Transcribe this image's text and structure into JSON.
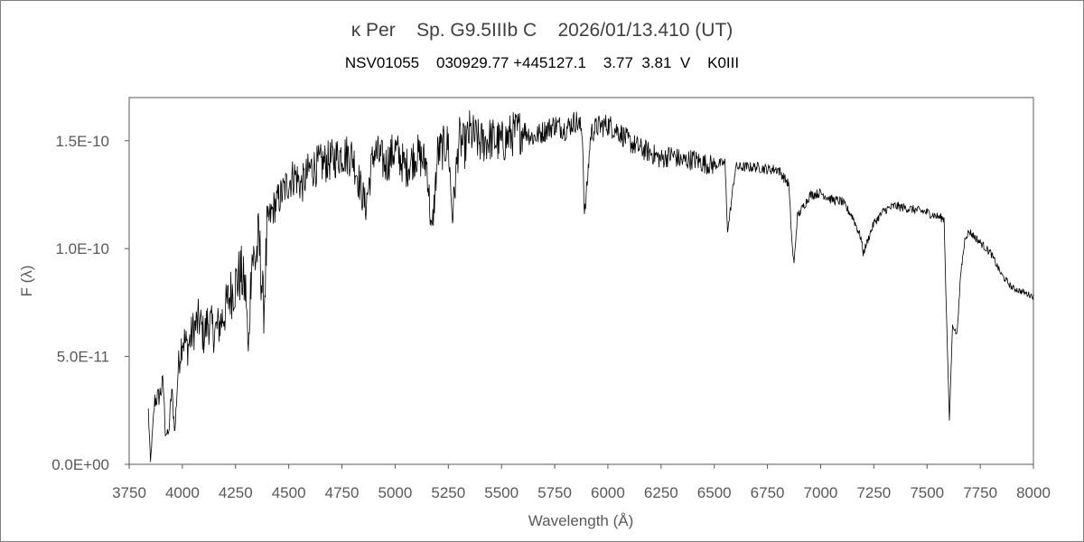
{
  "chart_data": {
    "type": "line",
    "title": "κ Per    Sp. G9.5IIIb C    2026/01/13.410 (UT)",
    "subtitle": "NSV01055    030929.77 +445127.1    3.77  3.81  V    K0III",
    "xlabel": "Wavelength (Å)",
    "ylabel": "F (λ)",
    "xlim": [
      3750,
      8000
    ],
    "ylim": [
      0,
      1.7e-10
    ],
    "xticks": [
      3750,
      4000,
      4250,
      4500,
      4750,
      5000,
      5250,
      5500,
      5750,
      6000,
      6250,
      6500,
      6750,
      7000,
      7250,
      7500,
      7750,
      8000
    ],
    "xtick_labels": [
      "3750",
      "4000",
      "4250",
      "4500",
      "4750",
      "5000",
      "5250",
      "5500",
      "5750",
      "6000",
      "6250",
      "6500",
      "6750",
      "7000",
      "7250",
      "7500",
      "7750",
      "8000"
    ],
    "yticks": [
      0,
      5e-11,
      1e-10,
      1.5e-10
    ],
    "ytick_labels": [
      "0.0E+00",
      "5.0E-11",
      "1.0E-10",
      "1.5E-10"
    ],
    "grid": false,
    "legend": "none",
    "line_color": "#000000",
    "series": [
      {
        "x": [
          3840,
          3850,
          3870,
          3890,
          3910,
          3920,
          3935,
          3950,
          3965,
          3980,
          4000,
          4025,
          4050,
          4080,
          4101,
          4120,
          4150,
          4175,
          4200,
          4225,
          4250,
          4275,
          4300,
          4310,
          4325,
          4340,
          4360,
          4383,
          4400,
          4430,
          4460,
          4500,
          4530,
          4560,
          4600,
          4650,
          4700,
          4750,
          4800,
          4861,
          4900,
          4957,
          5000,
          5050,
          5100,
          5150,
          5172,
          5200,
          5250,
          5269,
          5300,
          5328,
          5350,
          5400,
          5450,
          5500,
          5550,
          5600,
          5650,
          5700,
          5750,
          5800,
          5850,
          5880,
          5890,
          5896,
          5920,
          5950,
          6000,
          6050,
          6100,
          6150,
          6200,
          6250,
          6300,
          6350,
          6400,
          6450,
          6500,
          6550,
          6563,
          6600,
          6650,
          6700,
          6750,
          6800,
          6850,
          6867,
          6875,
          6890,
          6950,
          7000,
          7050,
          7100,
          7150,
          7190,
          7200,
          7250,
          7300,
          7350,
          7400,
          7450,
          7500,
          7550,
          7580,
          7594,
          7605,
          7620,
          7640,
          7660,
          7680,
          7700,
          7750,
          7800,
          7850,
          7900,
          7950,
          8000
        ],
        "y": [
          2.5e-11,
          1e-12,
          3e-11,
          3.2e-11,
          3.8e-11,
          1.5e-11,
          1.4e-11,
          3.5e-11,
          1.5e-11,
          4.5e-11,
          6e-11,
          5.5e-11,
          6.3e-11,
          6.8e-11,
          6e-11,
          6.8e-11,
          6.2e-11,
          6.6e-11,
          7.2e-11,
          8e-11,
          8.5e-11,
          9e-11,
          8e-11,
          5e-11,
          1e-10,
          9.5e-11,
          1.05e-10,
          7.2e-11,
          1.12e-10,
          1.2e-10,
          1.25e-10,
          1.32e-10,
          1.35e-10,
          1.3e-10,
          1.38e-10,
          1.4e-10,
          1.42e-10,
          1.45e-10,
          1.44e-10,
          1.2e-10,
          1.46e-10,
          1.4e-10,
          1.47e-10,
          1.38e-10,
          1.45e-10,
          1.4e-10,
          1.06e-10,
          1.45e-10,
          1.5e-10,
          1.15e-10,
          1.52e-10,
          1.48e-10,
          1.55e-10,
          1.5e-10,
          1.52e-10,
          1.5e-10,
          1.54e-10,
          1.56e-10,
          1.52e-10,
          1.55e-10,
          1.58e-10,
          1.56e-10,
          1.6e-10,
          1.55e-10,
          1.15e-10,
          1.22e-10,
          1.54e-10,
          1.57e-10,
          1.58e-10,
          1.55e-10,
          1.5e-10,
          1.47e-10,
          1.45e-10,
          1.42e-10,
          1.44e-10,
          1.41e-10,
          1.42e-10,
          1.4e-10,
          1.39e-10,
          1.4e-10,
          1.08e-10,
          1.38e-10,
          1.38e-10,
          1.38e-10,
          1.37e-10,
          1.37e-10,
          1.3e-10,
          1e-10,
          9.3e-11,
          1.15e-10,
          1.25e-10,
          1.26e-10,
          1.23e-10,
          1.22e-10,
          1.15e-10,
          1.05e-10,
          9.8e-11,
          1.12e-10,
          1.18e-10,
          1.2e-10,
          1.19e-10,
          1.18e-10,
          1.17e-10,
          1.15e-10,
          1.14e-10,
          6e-11,
          2e-11,
          6.5e-11,
          6e-11,
          9e-11,
          1.06e-10,
          1.08e-10,
          1.03e-10,
          9.8e-11,
          8.8e-11,
          8.2e-11,
          8e-11,
          7.8e-11
        ]
      }
    ]
  }
}
